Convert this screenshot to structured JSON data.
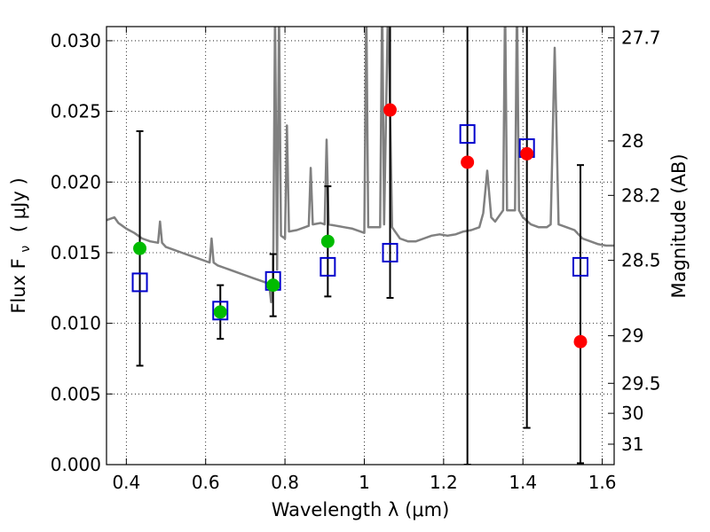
{
  "chart_data": {
    "type": "scatter",
    "xlabel": "Wavelength  λ (μm)",
    "ylabel": "Flux  F",
    "ylabel_subscript": "ν",
    "ylabel_unit": "( μJy )",
    "y2label": "Magnitude (AB)",
    "xlim": [
      0.35,
      1.63
    ],
    "ylim": [
      0.0,
      0.031
    ],
    "grid": true,
    "x_ticks": [
      {
        "value": 0.4,
        "label": "0.4"
      },
      {
        "value": 0.6,
        "label": "0.6"
      },
      {
        "value": 0.8,
        "label": "0.8"
      },
      {
        "value": 1.0,
        "label": "1"
      },
      {
        "value": 1.2,
        "label": "1.2"
      },
      {
        "value": 1.4,
        "label": "1.4"
      },
      {
        "value": 1.6,
        "label": "1.6"
      }
    ],
    "y_ticks": [
      {
        "value": 0.0,
        "label": "0.000"
      },
      {
        "value": 0.005,
        "label": "0.005"
      },
      {
        "value": 0.01,
        "label": "0.010"
      },
      {
        "value": 0.015,
        "label": "0.015"
      },
      {
        "value": 0.02,
        "label": "0.020"
      },
      {
        "value": 0.025,
        "label": "0.025"
      },
      {
        "value": 0.03,
        "label": "0.030"
      }
    ],
    "y2_ticks": [
      {
        "value": 27.7,
        "label": "27.7"
      },
      {
        "value": 28.0,
        "label": "28"
      },
      {
        "value": 28.2,
        "label": "28.2"
      },
      {
        "value": 28.5,
        "label": "28.5"
      },
      {
        "value": 29.0,
        "label": "29"
      },
      {
        "value": 29.5,
        "label": "29.5"
      },
      {
        "value": 30.0,
        "label": "30"
      },
      {
        "value": 31.0,
        "label": "31"
      }
    ],
    "colors": {
      "sed": "#808080",
      "model": "#0000cc",
      "detected": "#00bb00",
      "upper": "#ff0000",
      "errorbar": "#000000",
      "grid": "#000000"
    },
    "series": [
      {
        "kind": "line",
        "points": [
          [
            0.35,
            0.0173
          ],
          [
            0.37,
            0.0175
          ],
          [
            0.38,
            0.0171
          ],
          [
            0.39,
            0.0169
          ],
          [
            0.4,
            0.0167
          ],
          [
            0.42,
            0.0164
          ],
          [
            0.44,
            0.016
          ],
          [
            0.46,
            0.0158
          ],
          [
            0.48,
            0.0157
          ],
          [
            0.485,
            0.0172
          ],
          [
            0.49,
            0.0157
          ],
          [
            0.5,
            0.0154
          ],
          [
            0.52,
            0.0152
          ],
          [
            0.54,
            0.015
          ],
          [
            0.56,
            0.0148
          ],
          [
            0.58,
            0.0146
          ],
          [
            0.6,
            0.0144
          ],
          [
            0.61,
            0.0143
          ],
          [
            0.615,
            0.016
          ],
          [
            0.62,
            0.0143
          ],
          [
            0.63,
            0.0141
          ],
          [
            0.65,
            0.0139
          ],
          [
            0.66,
            0.0138
          ],
          [
            0.68,
            0.0136
          ],
          [
            0.7,
            0.0134
          ],
          [
            0.72,
            0.0132
          ],
          [
            0.74,
            0.013
          ],
          [
            0.76,
            0.0128
          ],
          [
            0.765,
            0.0115
          ],
          [
            0.77,
            0.0128
          ],
          [
            0.775,
            0.032
          ],
          [
            0.78,
            0.0138
          ],
          [
            0.785,
            0.032
          ],
          [
            0.79,
            0.0162
          ],
          [
            0.8,
            0.016
          ],
          [
            0.805,
            0.024
          ],
          [
            0.81,
            0.0165
          ],
          [
            0.83,
            0.0166
          ],
          [
            0.85,
            0.0168
          ],
          [
            0.86,
            0.0169
          ],
          [
            0.865,
            0.021
          ],
          [
            0.87,
            0.017
          ],
          [
            0.89,
            0.0171
          ],
          [
            0.9,
            0.017
          ],
          [
            0.905,
            0.023
          ],
          [
            0.91,
            0.017
          ],
          [
            0.93,
            0.0169
          ],
          [
            0.95,
            0.0168
          ],
          [
            0.97,
            0.0167
          ],
          [
            0.99,
            0.0165
          ],
          [
            1.0,
            0.0164
          ],
          [
            1.005,
            0.033
          ],
          [
            1.01,
            0.0168
          ],
          [
            1.03,
            0.0168
          ],
          [
            1.04,
            0.0168
          ],
          [
            1.045,
            0.033
          ],
          [
            1.05,
            0.017
          ],
          [
            1.06,
            0.033
          ],
          [
            1.07,
            0.0168
          ],
          [
            1.09,
            0.016
          ],
          [
            1.11,
            0.0158
          ],
          [
            1.13,
            0.0158
          ],
          [
            1.15,
            0.016
          ],
          [
            1.17,
            0.0162
          ],
          [
            1.19,
            0.0163
          ],
          [
            1.21,
            0.0162
          ],
          [
            1.23,
            0.0163
          ],
          [
            1.25,
            0.0165
          ],
          [
            1.27,
            0.0166
          ],
          [
            1.29,
            0.0168
          ],
          [
            1.3,
            0.0178
          ],
          [
            1.31,
            0.0208
          ],
          [
            1.32,
            0.0175
          ],
          [
            1.33,
            0.0172
          ],
          [
            1.35,
            0.018
          ],
          [
            1.355,
            0.033
          ],
          [
            1.36,
            0.018
          ],
          [
            1.38,
            0.018
          ],
          [
            1.385,
            0.033
          ],
          [
            1.39,
            0.018
          ],
          [
            1.4,
            0.0175
          ],
          [
            1.42,
            0.017
          ],
          [
            1.44,
            0.0168
          ],
          [
            1.46,
            0.0168
          ],
          [
            1.47,
            0.017
          ],
          [
            1.48,
            0.0295
          ],
          [
            1.49,
            0.017
          ],
          [
            1.51,
            0.0168
          ],
          [
            1.53,
            0.0166
          ],
          [
            1.55,
            0.016
          ],
          [
            1.57,
            0.0158
          ],
          [
            1.59,
            0.0156
          ],
          [
            1.61,
            0.0155
          ],
          [
            1.63,
            0.0155
          ]
        ]
      },
      {
        "name": "",
        "kind": "errorbar",
        "points": [
          {
            "x": 0.434,
            "y": 0.0129,
            "ylo": 0.007,
            "yhi": 0.0236
          },
          {
            "x": 0.637,
            "y": 0.0109,
            "ylo": 0.0089,
            "yhi": 0.0127
          },
          {
            "x": 0.77,
            "y": 0.0129,
            "ylo": 0.0105,
            "yhi": 0.0149
          },
          {
            "x": 0.908,
            "y": 0.014,
            "ylo": 0.0119,
            "yhi": 0.0197
          },
          {
            "x": 1.065,
            "y": 0.015,
            "ylo": 0.0118,
            "yhi": 0.032
          },
          {
            "x": 1.26,
            "y": 0.0234,
            "ylo": 0.0,
            "yhi": 0.032
          },
          {
            "x": 1.41,
            "y": 0.0223,
            "ylo": 0.0026,
            "yhi": 0.032
          },
          {
            "x": 1.545,
            "y": 0.014,
            "ylo": 0.0001,
            "yhi": 0.0212
          }
        ]
      },
      {
        "kind": "markers-square",
        "points": [
          [
            0.434,
            0.0129
          ],
          [
            0.637,
            0.0109
          ],
          [
            0.77,
            0.013
          ],
          [
            0.908,
            0.014
          ],
          [
            1.065,
            0.015
          ],
          [
            1.26,
            0.0234
          ],
          [
            1.41,
            0.0224
          ],
          [
            1.545,
            0.014
          ]
        ]
      },
      {
        "kind": "markers-green",
        "points": [
          [
            0.434,
            0.0153
          ],
          [
            0.637,
            0.0108
          ],
          [
            0.77,
            0.0127
          ],
          [
            0.908,
            0.0158
          ]
        ]
      },
      {
        "kind": "markers-red",
        "points": [
          [
            1.065,
            0.0251
          ],
          [
            1.26,
            0.0214
          ],
          [
            1.41,
            0.022
          ],
          [
            1.545,
            0.0087
          ]
        ]
      }
    ]
  }
}
